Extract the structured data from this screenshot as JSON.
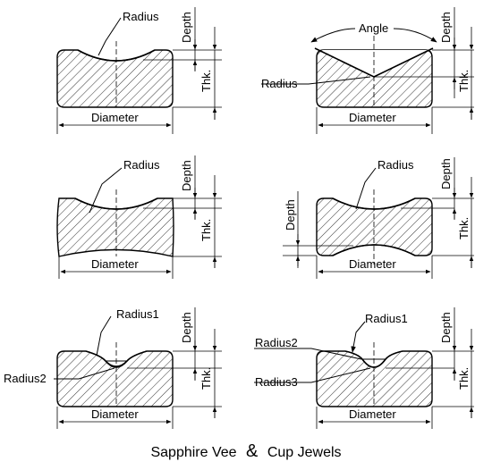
{
  "caption": {
    "part1": "Sapphire Vee",
    "amp": "&",
    "part2": "Cup Jewels"
  },
  "labels": {
    "radius": "Radius",
    "radius1": "Radius1",
    "radius2": "Radius2",
    "radius3": "Radius3",
    "depth": "Depth",
    "thk": "Thk.",
    "diameter": "Diameter",
    "angle": "Angle"
  }
}
